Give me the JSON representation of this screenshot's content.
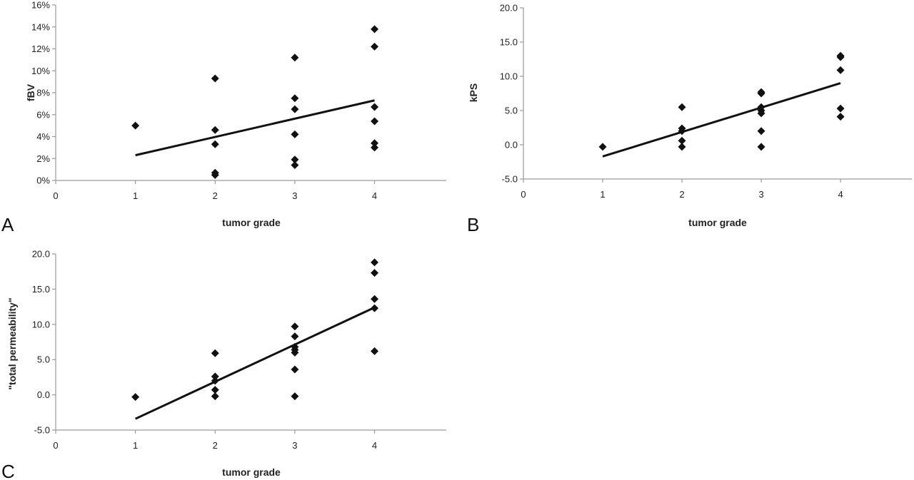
{
  "chart_data": [
    {
      "panel_label": "A",
      "type": "scatter",
      "xlabel": "tumor grade",
      "ylabel": "fBV",
      "x_ticks": [
        "0",
        "1",
        "2",
        "3",
        "4"
      ],
      "y_ticks": [
        "0%",
        "2%",
        "4%",
        "6%",
        "8%",
        "10%",
        "12%",
        "14%",
        "16%"
      ],
      "xlim": [
        0,
        4.9
      ],
      "ylim": [
        0,
        16
      ],
      "grid": false,
      "points": [
        [
          1,
          5.0
        ],
        [
          2,
          9.3
        ],
        [
          2,
          4.6
        ],
        [
          2,
          3.3
        ],
        [
          2,
          0.7
        ],
        [
          2,
          0.5
        ],
        [
          3,
          11.2
        ],
        [
          3,
          7.5
        ],
        [
          3,
          6.5
        ],
        [
          3,
          4.2
        ],
        [
          3,
          1.9
        ],
        [
          3,
          1.4
        ],
        [
          4,
          13.8
        ],
        [
          4,
          12.2
        ],
        [
          4,
          6.7
        ],
        [
          4,
          5.4
        ],
        [
          4,
          3.4
        ],
        [
          4,
          3.0
        ]
      ],
      "trendline": [
        [
          1,
          2.3
        ],
        [
          4,
          7.3
        ]
      ]
    },
    {
      "panel_label": "B",
      "type": "scatter",
      "xlabel": "tumor grade",
      "ylabel": "kPS",
      "x_ticks": [
        "0",
        "1",
        "2",
        "3",
        "4"
      ],
      "y_ticks": [
        "-5.0",
        "0.0",
        "5.0",
        "10.0",
        "15.0",
        "20.0"
      ],
      "xlim": [
        0,
        4.9
      ],
      "ylim": [
        -5,
        20
      ],
      "grid": false,
      "points": [
        [
          1,
          -0.3
        ],
        [
          2,
          5.5
        ],
        [
          2,
          2.4
        ],
        [
          2,
          2.0
        ],
        [
          2,
          0.6
        ],
        [
          2,
          -0.3
        ],
        [
          3,
          7.7
        ],
        [
          3,
          7.5
        ],
        [
          3,
          5.5
        ],
        [
          3,
          5.0
        ],
        [
          3,
          4.6
        ],
        [
          3,
          2.0
        ],
        [
          3,
          -0.3
        ],
        [
          4,
          13.0
        ],
        [
          4,
          12.8
        ],
        [
          4,
          10.9
        ],
        [
          4,
          5.3
        ],
        [
          4,
          4.1
        ]
      ],
      "trendline": [
        [
          1,
          -1.7
        ],
        [
          4,
          9.0
        ]
      ]
    },
    {
      "panel_label": "C",
      "type": "scatter",
      "xlabel": "tumor grade",
      "ylabel": "\"total permeability\"",
      "x_ticks": [
        "0",
        "1",
        "2",
        "3",
        "4"
      ],
      "y_ticks": [
        "-5.0",
        "0.0",
        "5.0",
        "10.0",
        "15.0",
        "20.0"
      ],
      "xlim": [
        0,
        4.9
      ],
      "ylim": [
        -5,
        20
      ],
      "grid": false,
      "points": [
        [
          1,
          -0.3
        ],
        [
          2,
          5.9
        ],
        [
          2,
          2.6
        ],
        [
          2,
          2.0
        ],
        [
          2,
          0.7
        ],
        [
          2,
          -0.2
        ],
        [
          3,
          9.7
        ],
        [
          3,
          8.3
        ],
        [
          3,
          6.8
        ],
        [
          3,
          6.4
        ],
        [
          3,
          6.0
        ],
        [
          3,
          3.6
        ],
        [
          3,
          -0.2
        ],
        [
          4,
          18.8
        ],
        [
          4,
          17.3
        ],
        [
          4,
          13.6
        ],
        [
          4,
          12.3
        ],
        [
          4,
          6.2
        ]
      ],
      "trendline": [
        [
          1,
          -3.4
        ],
        [
          4,
          12.4
        ]
      ]
    }
  ]
}
